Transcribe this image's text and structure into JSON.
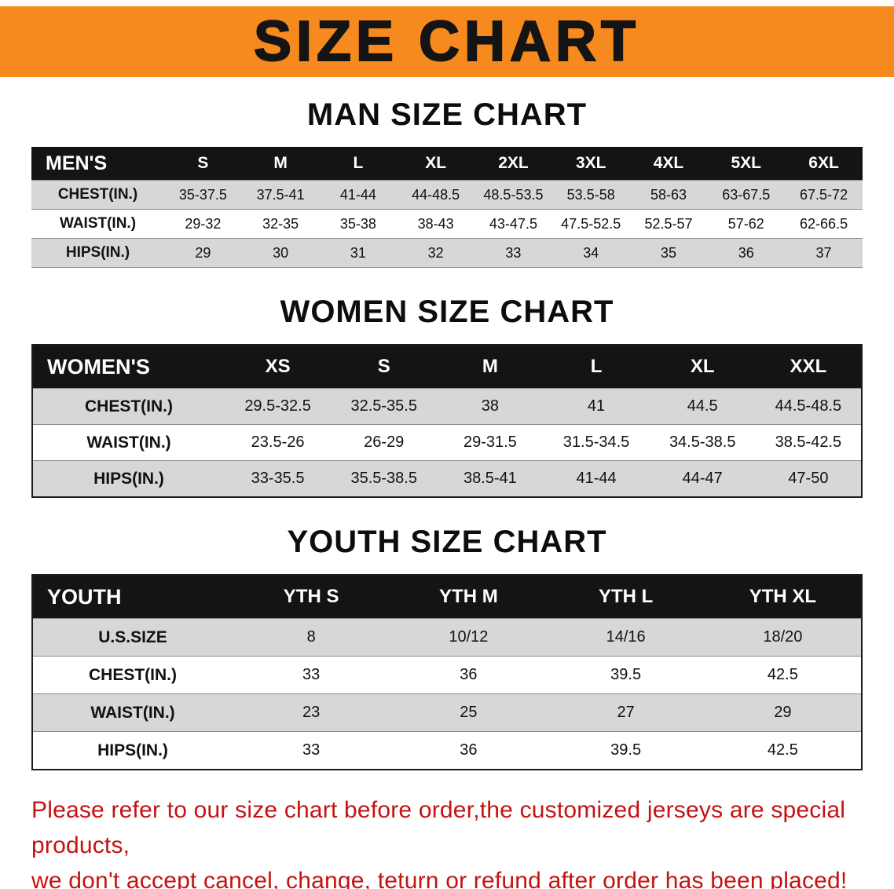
{
  "banner": {
    "title": "SIZE CHART",
    "bg_color": "#f68a1e"
  },
  "sections": {
    "men": {
      "heading": "MAN SIZE CHART",
      "header": [
        "MEN'S",
        "S",
        "M",
        "L",
        "XL",
        "2XL",
        "3XL",
        "4XL",
        "5XL",
        "6XL"
      ],
      "rows": [
        {
          "label": "CHEST(IN.)",
          "values": [
            "35-37.5",
            "37.5-41",
            "41-44",
            "44-48.5",
            "48.5-53.5",
            "53.5-58",
            "58-63",
            "63-67.5",
            "67.5-72"
          ]
        },
        {
          "label": "WAIST(IN.)",
          "values": [
            "29-32",
            "32-35",
            "35-38",
            "38-43",
            "43-47.5",
            "47.5-52.5",
            "52.5-57",
            "57-62",
            "62-66.5"
          ]
        },
        {
          "label": "HIPS(IN.)",
          "values": [
            "29",
            "30",
            "31",
            "32",
            "33",
            "34",
            "35",
            "36",
            "37"
          ]
        }
      ]
    },
    "women": {
      "heading": "WOMEN SIZE CHART",
      "header": [
        "WOMEN'S",
        "XS",
        "S",
        "M",
        "L",
        "XL",
        "XXL"
      ],
      "rows": [
        {
          "label": "CHEST(IN.)",
          "values": [
            "29.5-32.5",
            "32.5-35.5",
            "38",
            "41",
            "44.5",
            "44.5-48.5"
          ]
        },
        {
          "label": "WAIST(IN.)",
          "values": [
            "23.5-26",
            "26-29",
            "29-31.5",
            "31.5-34.5",
            "34.5-38.5",
            "38.5-42.5"
          ]
        },
        {
          "label": "HIPS(IN.)",
          "values": [
            "33-35.5",
            "35.5-38.5",
            "38.5-41",
            "41-44",
            "44-47",
            "47-50"
          ]
        }
      ]
    },
    "youth": {
      "heading": "YOUTH SIZE CHART",
      "header": [
        "YOUTH",
        "YTH S",
        "YTH M",
        "YTH L",
        "YTH XL"
      ],
      "rows": [
        {
          "label": "U.S.SIZE",
          "values": [
            "8",
            "10/12",
            "14/16",
            "18/20"
          ]
        },
        {
          "label": "CHEST(IN.)",
          "values": [
            "33",
            "36",
            "39.5",
            "42.5"
          ]
        },
        {
          "label": "WAIST(IN.)",
          "values": [
            "23",
            "25",
            "27",
            "29"
          ]
        },
        {
          "label": "HIPS(IN.)",
          "values": [
            "33",
            "36",
            "39.5",
            "42.5"
          ]
        }
      ]
    }
  },
  "footer": {
    "line1": "Please refer to our size chart before order,the customized jerseys are special products,",
    "line2": "we don't accept cancel, change, teturn or refund after order has been placed!"
  }
}
